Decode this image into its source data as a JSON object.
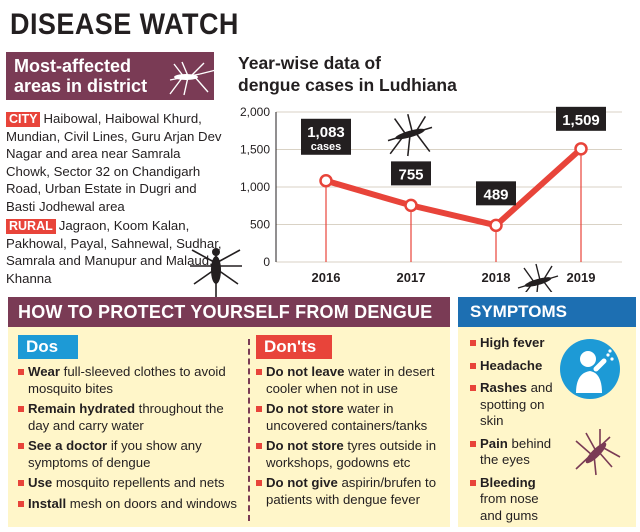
{
  "title": "DISEASE WATCH",
  "areas": {
    "heading_line1": "Most-affected",
    "heading_line2": "areas in district",
    "city_tag": "CITY",
    "city_text": "Haibowal, Haibowal Khurd, Mundian, Civil Lines, Guru Arjan Dev Nagar and area near Samrala Chowk, Sector 32 on Chandigarh Road, Urban Estate in Dugri and Basti Jodhewal area",
    "rural_tag": "RURAL",
    "rural_text": "Jagraon, Koom Kalan, Pakhowal, Payal, Sahnewal, Sudhar, Samrala and Manupur and Malaud, Khanna"
  },
  "chart_title_line1": "Year-wise data of",
  "chart_title_line2": "dengue cases in Ludhiana",
  "chart_data": {
    "type": "line",
    "title": "Year-wise data of dengue cases in Ludhiana",
    "categories": [
      "2016",
      "2017",
      "2018",
      "2019"
    ],
    "values": [
      1083,
      755,
      489,
      1509
    ],
    "data_labels": [
      "1,083",
      "755",
      "489",
      "1,509"
    ],
    "extra_label": "cases",
    "y_ticks": [
      "0",
      "500",
      "1,000",
      "1,500",
      "2,000"
    ],
    "ylim": [
      0,
      2000
    ],
    "line_color": "#e8443a",
    "label_bg": "#231f20"
  },
  "protect": {
    "heading": "HOW TO PROTECT YOURSELF FROM DENGUE",
    "dos_label": "Dos",
    "donts_label": "Don'ts",
    "dos": [
      {
        "bold": "Wear",
        "rest": " full-sleeved clothes to avoid mosquito bites"
      },
      {
        "bold": "Remain hydrated",
        "rest": " throughout the day and carry water"
      },
      {
        "bold": "See a doctor",
        "rest": " if you show any symptoms of dengue"
      },
      {
        "bold": "Use",
        "rest": " mosquito repellents and nets"
      },
      {
        "bold": "Install",
        "rest": " mesh on doors and windows"
      }
    ],
    "donts": [
      {
        "bold": "Do not leave",
        "rest": " water in desert cooler when not in use"
      },
      {
        "bold": "Do not store",
        "rest": " water in uncovered containers/tanks"
      },
      {
        "bold": "Do not store",
        "rest": " tyres outside in workshops, godowns etc"
      },
      {
        "bold": "Do not give",
        "rest": " aspirin/brufen to patients with dengue fever"
      }
    ]
  },
  "symptoms": {
    "heading": "SYMPTOMS",
    "items": [
      {
        "bold": "High fever",
        "rest": ""
      },
      {
        "bold": "Headache",
        "rest": ""
      },
      {
        "bold": "Rashes",
        "rest": " and spotting on skin"
      },
      {
        "bold": "Pain",
        "rest": " behind the eyes"
      },
      {
        "bold": "Bleeding",
        "rest": " from nose and gums"
      }
    ]
  },
  "colors": {
    "plum": "#7a3b55",
    "red": "#e8443a",
    "blue": "#1d9ad6",
    "dark_blue": "#1d6fb2",
    "cream": "#fff6c9"
  }
}
